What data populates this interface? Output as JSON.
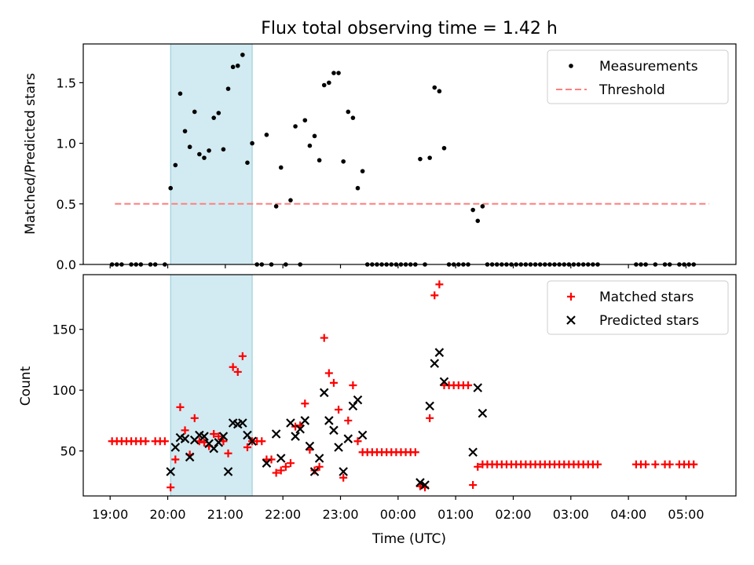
{
  "title": "Flux total observing time = 1.42 h",
  "xlabel": "Time (UTC)",
  "x_ticks": [
    {
      "t": 0,
      "label": "19:00"
    },
    {
      "t": 60,
      "label": "20:00"
    },
    {
      "t": 120,
      "label": "21:00"
    },
    {
      "t": 180,
      "label": "22:00"
    },
    {
      "t": 240,
      "label": "23:00"
    },
    {
      "t": 300,
      "label": "00:00"
    },
    {
      "t": 360,
      "label": "01:00"
    },
    {
      "t": 420,
      "label": "02:00"
    },
    {
      "t": 480,
      "label": "03:00"
    },
    {
      "t": 540,
      "label": "04:00"
    },
    {
      "t": 600,
      "label": "05:00"
    }
  ],
  "observing_window": {
    "start_min": 63,
    "end_min": 148,
    "color": "#add8e6"
  },
  "colors": {
    "measurement": "#000000",
    "threshold": "#ff7f7f",
    "matched": "#ff0000",
    "predicted": "#000000"
  },
  "chart_data": [
    {
      "type": "scatter",
      "ylabel": "Matched/Predicted stars",
      "ylim": [
        0,
        1.82
      ],
      "xlim": [
        -28,
        652
      ],
      "y_ticks": [
        "0.0",
        "0.5",
        "1.0",
        "1.5"
      ],
      "legend": [
        "Measurements",
        "Threshold"
      ],
      "legend_position": "top-right",
      "threshold": {
        "value": 0.5,
        "x_range": [
          5,
          624
        ]
      },
      "series": [
        {
          "name": "Measurements",
          "points": [
            [
              2,
              0
            ],
            [
              7,
              0
            ],
            [
              12,
              0
            ],
            [
              22,
              0
            ],
            [
              27,
              0
            ],
            [
              32,
              0
            ],
            [
              42,
              0
            ],
            [
              47,
              0
            ],
            [
              57,
              0
            ],
            [
              63,
              0.63
            ],
            [
              68,
              0.82
            ],
            [
              73,
              1.41
            ],
            [
              78,
              1.1
            ],
            [
              83,
              0.97
            ],
            [
              88,
              1.26
            ],
            [
              93,
              0.91
            ],
            [
              98,
              0.88
            ],
            [
              103,
              0.94
            ],
            [
              108,
              1.21
            ],
            [
              113,
              1.25
            ],
            [
              118,
              0.95
            ],
            [
              123,
              1.45
            ],
            [
              128,
              1.63
            ],
            [
              133,
              1.64
            ],
            [
              138,
              1.73
            ],
            [
              143,
              0.84
            ],
            [
              148,
              1.0
            ],
            [
              153,
              0
            ],
            [
              158,
              0
            ],
            [
              163,
              1.07
            ],
            [
              168,
              0
            ],
            [
              173,
              0.48
            ],
            [
              178,
              0.8
            ],
            [
              183,
              0
            ],
            [
              188,
              0.53
            ],
            [
              193,
              1.14
            ],
            [
              198,
              0
            ],
            [
              203,
              1.19
            ],
            [
              208,
              0.98
            ],
            [
              213,
              1.06
            ],
            [
              218,
              0.86
            ],
            [
              223,
              1.48
            ],
            [
              228,
              1.5
            ],
            [
              233,
              1.58
            ],
            [
              238,
              1.58
            ],
            [
              243,
              0.85
            ],
            [
              248,
              1.26
            ],
            [
              253,
              1.21
            ],
            [
              258,
              0.63
            ],
            [
              263,
              0.77
            ],
            [
              268,
              0
            ],
            [
              273,
              0
            ],
            [
              278,
              0
            ],
            [
              283,
              0
            ],
            [
              288,
              0
            ],
            [
              293,
              0
            ],
            [
              298,
              0
            ],
            [
              303,
              0
            ],
            [
              308,
              0
            ],
            [
              313,
              0
            ],
            [
              318,
              0
            ],
            [
              323,
              0.87
            ],
            [
              328,
              0
            ],
            [
              333,
              0.88
            ],
            [
              338,
              1.46
            ],
            [
              343,
              1.43
            ],
            [
              348,
              0.96
            ],
            [
              353,
              0
            ],
            [
              358,
              0
            ],
            [
              363,
              0
            ],
            [
              368,
              0
            ],
            [
              373,
              0
            ],
            [
              378,
              0.45
            ],
            [
              383,
              0.36
            ],
            [
              388,
              0.48
            ],
            [
              393,
              0
            ],
            [
              398,
              0
            ],
            [
              403,
              0
            ],
            [
              408,
              0
            ],
            [
              413,
              0
            ],
            [
              418,
              0
            ],
            [
              423,
              0
            ],
            [
              428,
              0
            ],
            [
              433,
              0
            ],
            [
              438,
              0
            ],
            [
              443,
              0
            ],
            [
              448,
              0
            ],
            [
              453,
              0
            ],
            [
              458,
              0
            ],
            [
              463,
              0
            ],
            [
              468,
              0
            ],
            [
              473,
              0
            ],
            [
              478,
              0
            ],
            [
              483,
              0
            ],
            [
              488,
              0
            ],
            [
              493,
              0
            ],
            [
              498,
              0
            ],
            [
              503,
              0
            ],
            [
              508,
              0
            ],
            [
              548,
              0
            ],
            [
              553,
              0
            ],
            [
              558,
              0
            ],
            [
              568,
              0
            ],
            [
              578,
              0
            ],
            [
              583,
              0
            ],
            [
              593,
              0
            ],
            [
              598,
              0
            ],
            [
              603,
              0
            ],
            [
              608,
              0
            ]
          ]
        }
      ]
    },
    {
      "type": "scatter",
      "ylabel": "Count",
      "ylim": [
        13,
        195
      ],
      "xlim": [
        -28,
        652
      ],
      "y_ticks": [
        "50",
        "100",
        "150"
      ],
      "legend": [
        "Matched stars",
        "Predicted stars"
      ],
      "legend_position": "top-right",
      "series": [
        {
          "name": "Matched stars",
          "points": [
            [
              2,
              58
            ],
            [
              7,
              58
            ],
            [
              12,
              58
            ],
            [
              17,
              58
            ],
            [
              22,
              58
            ],
            [
              27,
              58
            ],
            [
              32,
              58
            ],
            [
              37,
              58
            ],
            [
              47,
              58
            ],
            [
              52,
              58
            ],
            [
              57,
              58
            ],
            [
              63,
              20
            ],
            [
              68,
              43
            ],
            [
              73,
              86
            ],
            [
              78,
              67
            ],
            [
              83,
              47
            ],
            [
              88,
              77
            ],
            [
              93,
              58
            ],
            [
              98,
              57
            ],
            [
              103,
              54
            ],
            [
              108,
              64
            ],
            [
              113,
              62
            ],
            [
              118,
              58
            ],
            [
              123,
              48
            ],
            [
              128,
              119
            ],
            [
              133,
              115
            ],
            [
              138,
              128
            ],
            [
              143,
              53
            ],
            [
              148,
              58
            ],
            [
              153,
              58
            ],
            [
              158,
              58
            ],
            [
              163,
              43
            ],
            [
              168,
              43
            ],
            [
              173,
              32
            ],
            [
              178,
              34
            ],
            [
              183,
              37
            ],
            [
              188,
              40
            ],
            [
              193,
              70
            ],
            [
              198,
              71
            ],
            [
              203,
              89
            ],
            [
              208,
              51
            ],
            [
              213,
              34
            ],
            [
              218,
              37
            ],
            [
              223,
              143
            ],
            [
              228,
              114
            ],
            [
              233,
              106
            ],
            [
              238,
              84
            ],
            [
              243,
              28
            ],
            [
              248,
              75
            ],
            [
              253,
              104
            ],
            [
              258,
              58
            ],
            [
              263,
              49
            ],
            [
              268,
              49
            ],
            [
              273,
              49
            ],
            [
              278,
              49
            ],
            [
              283,
              49
            ],
            [
              288,
              49
            ],
            [
              293,
              49
            ],
            [
              298,
              49
            ],
            [
              303,
              49
            ],
            [
              308,
              49
            ],
            [
              313,
              49
            ],
            [
              318,
              49
            ],
            [
              323,
              21
            ],
            [
              328,
              20
            ],
            [
              333,
              77
            ],
            [
              338,
              178
            ],
            [
              343,
              187
            ],
            [
              348,
              104
            ],
            [
              353,
              104
            ],
            [
              358,
              104
            ],
            [
              363,
              104
            ],
            [
              368,
              104
            ],
            [
              373,
              104
            ],
            [
              378,
              22
            ],
            [
              383,
              37
            ],
            [
              388,
              39
            ],
            [
              393,
              39
            ],
            [
              398,
              39
            ],
            [
              403,
              39
            ],
            [
              408,
              39
            ],
            [
              413,
              39
            ],
            [
              418,
              39
            ],
            [
              423,
              39
            ],
            [
              428,
              39
            ],
            [
              433,
              39
            ],
            [
              438,
              39
            ],
            [
              443,
              39
            ],
            [
              448,
              39
            ],
            [
              453,
              39
            ],
            [
              458,
              39
            ],
            [
              463,
              39
            ],
            [
              468,
              39
            ],
            [
              473,
              39
            ],
            [
              478,
              39
            ],
            [
              483,
              39
            ],
            [
              488,
              39
            ],
            [
              493,
              39
            ],
            [
              498,
              39
            ],
            [
              503,
              39
            ],
            [
              508,
              39
            ],
            [
              548,
              39
            ],
            [
              553,
              39
            ],
            [
              558,
              39
            ],
            [
              568,
              39
            ],
            [
              578,
              39
            ],
            [
              583,
              39
            ],
            [
              593,
              39
            ],
            [
              598,
              39
            ],
            [
              603,
              39
            ],
            [
              608,
              39
            ]
          ]
        },
        {
          "name": "Predicted stars",
          "points": [
            [
              63,
              33
            ],
            [
              68,
              53
            ],
            [
              73,
              61
            ],
            [
              78,
              60
            ],
            [
              83,
              45
            ],
            [
              88,
              59
            ],
            [
              93,
              63
            ],
            [
              98,
              62
            ],
            [
              103,
              56
            ],
            [
              108,
              52
            ],
            [
              113,
              57
            ],
            [
              118,
              62
            ],
            [
              123,
              33
            ],
            [
              128,
              73
            ],
            [
              133,
              72
            ],
            [
              138,
              73
            ],
            [
              143,
              63
            ],
            [
              148,
              58
            ],
            [
              163,
              40
            ],
            [
              173,
              64
            ],
            [
              178,
              44
            ],
            [
              188,
              73
            ],
            [
              193,
              62
            ],
            [
              198,
              68
            ],
            [
              203,
              75
            ],
            [
              208,
              54
            ],
            [
              213,
              33
            ],
            [
              218,
              44
            ],
            [
              223,
              98
            ],
            [
              228,
              75
            ],
            [
              233,
              67
            ],
            [
              238,
              53
            ],
            [
              243,
              33
            ],
            [
              248,
              60
            ],
            [
              253,
              87
            ],
            [
              258,
              92
            ],
            [
              263,
              63
            ],
            [
              323,
              24
            ],
            [
              328,
              22
            ],
            [
              333,
              87
            ],
            [
              338,
              122
            ],
            [
              343,
              131
            ],
            [
              348,
              107
            ],
            [
              378,
              49
            ],
            [
              383,
              102
            ],
            [
              388,
              81
            ]
          ]
        }
      ]
    }
  ]
}
